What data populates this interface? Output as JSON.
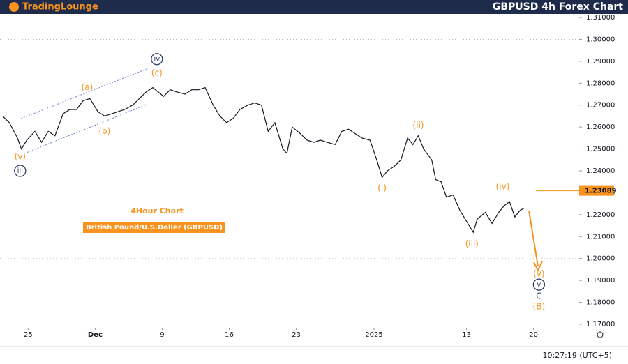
{
  "header": {
    "logo": "TradingLounge",
    "title": "GBPUSD 4h Forex Chart"
  },
  "chart_data": {
    "type": "line",
    "subtitle": "4Hour Chart",
    "label_box": "British Pound/U.S.Doller (GBPUSD)",
    "color": "#131722",
    "x": [
      -1.9,
      -1.4,
      -0.8,
      -0.5,
      -0.1,
      0.5,
      1.0,
      1.5,
      2.0,
      2.6,
      3.1,
      3.6,
      4.1,
      4.6,
      5.2,
      5.7,
      6.2,
      6.7,
      7.2,
      7.8,
      8.3,
      8.8,
      9.3,
      9.7,
      10.1,
      10.6,
      11.1,
      11.7,
      12.2,
      12.7,
      13.2,
      13.8,
      14.3,
      14.8,
      15.3,
      15.8,
      16.4,
      16.9,
      17.4,
      17.9,
      18.4,
      19.0,
      19.3,
      19.7,
      20.3,
      20.8,
      21.3,
      21.8,
      22.3,
      22.9,
      23.4,
      23.9,
      24.4,
      24.9,
      25.5,
      26.0,
      26.4,
      26.8,
      27.3,
      27.8,
      28.3,
      28.7,
      29.1,
      29.5,
      30.1,
      30.4,
      30.8,
      31.2,
      31.7,
      32.2,
      32.8,
      33.2,
      33.5,
      34.1,
      34.6,
      35.1,
      35.5,
      35.9,
      36.3,
      36.7,
      37.0
    ],
    "values": [
      1.265,
      1.262,
      1.255,
      1.25,
      1.254,
      1.258,
      1.253,
      1.258,
      1.256,
      1.266,
      1.268,
      1.268,
      1.272,
      1.273,
      1.267,
      1.265,
      1.266,
      1.267,
      1.268,
      1.27,
      1.273,
      1.276,
      1.278,
      1.276,
      1.274,
      1.277,
      1.276,
      1.275,
      1.277,
      1.277,
      1.278,
      1.27,
      1.265,
      1.262,
      1.264,
      1.268,
      1.27,
      1.271,
      1.27,
      1.258,
      1.262,
      1.25,
      1.248,
      1.26,
      1.257,
      1.254,
      1.253,
      1.254,
      1.253,
      1.252,
      1.258,
      1.259,
      1.257,
      1.255,
      1.254,
      1.245,
      1.237,
      1.24,
      1.242,
      1.245,
      1.255,
      1.252,
      1.256,
      1.25,
      1.245,
      1.236,
      1.235,
      1.228,
      1.229,
      1.222,
      1.216,
      1.212,
      1.218,
      1.221,
      1.216,
      1.221,
      1.224,
      1.226,
      1.219,
      1.222,
      1.223
    ],
    "xlim": [
      -2.1,
      41.1
    ],
    "ylim": [
      1.1684,
      1.3116
    ],
    "xticks": [
      {
        "value": 0,
        "label": "25"
      },
      {
        "value": 5,
        "label": "Dec"
      },
      {
        "value": 10,
        "label": "9"
      },
      {
        "value": 15,
        "label": "16"
      },
      {
        "value": 20,
        "label": "23"
      },
      {
        "value": 25.8,
        "label": "2025"
      },
      {
        "value": 32.7,
        "label": "13"
      },
      {
        "value": 37.7,
        "label": "20"
      }
    ],
    "yticks": [
      {
        "value": 1.17,
        "label": "1.17000"
      },
      {
        "value": 1.18,
        "label": "1.18000"
      },
      {
        "value": 1.19,
        "label": "1.19000"
      },
      {
        "value": 1.2,
        "label": "1.20000"
      },
      {
        "value": 1.21,
        "label": "1.21000"
      },
      {
        "value": 1.22,
        "label": "1.22000"
      },
      {
        "value": 1.23,
        "label": "1.23000"
      },
      {
        "value": 1.24,
        "label": "1.24000"
      },
      {
        "value": 1.25,
        "label": "1.25000"
      },
      {
        "value": 1.26,
        "label": "1.26000"
      },
      {
        "value": 1.27,
        "label": "1.27000"
      },
      {
        "value": 1.28,
        "label": "1.28000"
      },
      {
        "value": 1.29,
        "label": "1.29000"
      },
      {
        "value": 1.3,
        "label": "1.30000"
      },
      {
        "value": 1.31,
        "label": "1.31000"
      }
    ],
    "grid_values": [
      1.3,
      1.2
    ],
    "price_line": {
      "value": 1.23089,
      "label": "1.23089",
      "color": "#f7931e"
    },
    "annotations": [
      {
        "text": "(v)",
        "x": -0.6,
        "y": 1.2464,
        "color": "#f7931e"
      },
      {
        "text": "iii",
        "x": -0.6,
        "y": 1.24,
        "color": "#2b3a67",
        "circled": true
      },
      {
        "text": "(a)",
        "x": 4.4,
        "y": 1.278,
        "color": "#f7931e"
      },
      {
        "text": "(b)",
        "x": 5.7,
        "y": 1.258,
        "color": "#f7931e"
      },
      {
        "text": "(c)",
        "x": 9.6,
        "y": 1.2845,
        "color": "#f7931e"
      },
      {
        "text": "iv",
        "x": 9.6,
        "y": 1.291,
        "color": "#2b3a67",
        "circled": true
      },
      {
        "text": "(i)",
        "x": 26.4,
        "y": 1.232,
        "color": "#f7931e"
      },
      {
        "text": "(ii)",
        "x": 29.1,
        "y": 1.2607,
        "color": "#f7931e"
      },
      {
        "text": "(iii)",
        "x": 33.1,
        "y": 1.2066,
        "color": "#f7931e"
      },
      {
        "text": "(iv)",
        "x": 35.4,
        "y": 1.2327,
        "color": "#f7931e"
      },
      {
        "text": "(v)",
        "x": 38.1,
        "y": 1.1929,
        "color": "#f7931e"
      },
      {
        "text": "v",
        "x": 38.1,
        "y": 1.1881,
        "color": "#2b3a67",
        "circled": true
      },
      {
        "text": "C",
        "x": 38.1,
        "y": 1.1827,
        "color": "#2b3a67"
      },
      {
        "text": "(B)",
        "x": 38.1,
        "y": 1.178,
        "color": "#f7931e"
      }
    ]
  },
  "footer": {
    "time": "10:27:19 (UTC+5)"
  }
}
